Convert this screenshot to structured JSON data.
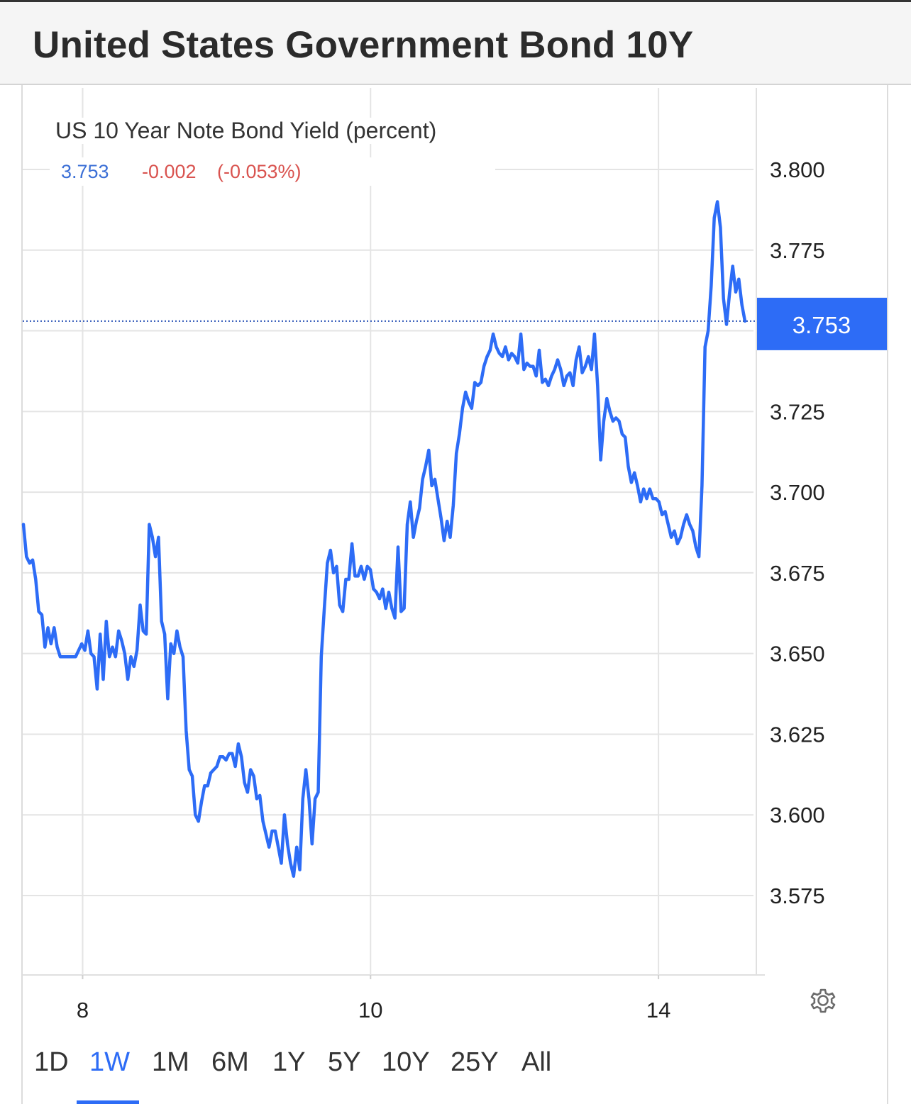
{
  "header": {
    "title": "United States Government Bond 10Y"
  },
  "legend": {
    "title": "US 10 Year Note Bond Yield (percent)",
    "last": "3.753",
    "change": "-0.002",
    "change_pct": "(-0.053%)"
  },
  "ranges": [
    {
      "label": "1D",
      "active": false
    },
    {
      "label": "1W",
      "active": true
    },
    {
      "label": "1M",
      "active": false
    },
    {
      "label": "6M",
      "active": false
    },
    {
      "label": "1Y",
      "active": false
    },
    {
      "label": "5Y",
      "active": false
    },
    {
      "label": "10Y",
      "active": false
    },
    {
      "label": "25Y",
      "active": false
    },
    {
      "label": "All",
      "active": false
    }
  ],
  "icons": {
    "settings": "gear-icon"
  },
  "colors": {
    "line": "#2d6cf6",
    "badge": "#2d6cf6",
    "change_negative": "#d9534f",
    "last_value": "#3b6fd6"
  },
  "chart_data": {
    "type": "line",
    "title": "US 10 Year Note Bond Yield (percent)",
    "ylim": [
      3.55,
      3.81
    ],
    "yticks": [
      "3.800",
      "3.775",
      "3.750",
      "3.725",
      "3.700",
      "3.675",
      "3.650",
      "3.625",
      "3.600",
      "3.575"
    ],
    "yticks_visible": [
      "3.800",
      "3.775",
      "3.725",
      "3.700",
      "3.675",
      "3.650",
      "3.625",
      "3.600",
      "3.575"
    ],
    "xticks": [
      {
        "label": "8",
        "t": 0.082
      },
      {
        "label": "10",
        "t": 0.476
      },
      {
        "label": "14",
        "t": 0.87
      }
    ],
    "current_value": "3.753",
    "grid": true,
    "series": [
      {
        "values": [
          3.69,
          3.68,
          3.678,
          3.679,
          3.673,
          3.663,
          3.662,
          3.652,
          3.658,
          3.653,
          3.658,
          3.652,
          3.649,
          3.649,
          3.649,
          3.649,
          3.649,
          3.649,
          3.651,
          3.653,
          3.651,
          3.657,
          3.65,
          3.649,
          3.639,
          3.656,
          3.642,
          3.66,
          3.649,
          3.652,
          3.649,
          3.657,
          3.654,
          3.65,
          3.642,
          3.649,
          3.646,
          3.651,
          3.665,
          3.657,
          3.656,
          3.69,
          3.686,
          3.68,
          3.686,
          3.66,
          3.656,
          3.636,
          3.653,
          3.65,
          3.657,
          3.652,
          3.649,
          3.626,
          3.614,
          3.612,
          3.6,
          3.598,
          3.604,
          3.609,
          3.609,
          3.613,
          3.614,
          3.615,
          3.618,
          3.618,
          3.617,
          3.619,
          3.619,
          3.615,
          3.622,
          3.618,
          3.61,
          3.607,
          3.614,
          3.612,
          3.605,
          3.606,
          3.598,
          3.594,
          3.59,
          3.595,
          3.595,
          3.59,
          3.585,
          3.6,
          3.591,
          3.585,
          3.581,
          3.59,
          3.583,
          3.605,
          3.614,
          3.605,
          3.591,
          3.605,
          3.607,
          3.649,
          3.664,
          3.678,
          3.682,
          3.675,
          3.677,
          3.665,
          3.663,
          3.673,
          3.673,
          3.684,
          3.674,
          3.674,
          3.677,
          3.673,
          3.677,
          3.676,
          3.67,
          3.669,
          3.667,
          3.67,
          3.664,
          3.669,
          3.664,
          3.661,
          3.683,
          3.663,
          3.664,
          3.69,
          3.697,
          3.686,
          3.691,
          3.695,
          3.704,
          3.708,
          3.713,
          3.702,
          3.704,
          3.698,
          3.692,
          3.685,
          3.691,
          3.686,
          3.696,
          3.712,
          3.718,
          3.726,
          3.731,
          3.728,
          3.726,
          3.734,
          3.733,
          3.734,
          3.739,
          3.742,
          3.744,
          3.749,
          3.745,
          3.743,
          3.742,
          3.745,
          3.741,
          3.743,
          3.742,
          3.74,
          3.749,
          3.738,
          3.74,
          3.739,
          3.739,
          3.736,
          3.744,
          3.734,
          3.735,
          3.733,
          3.736,
          3.738,
          3.741,
          3.738,
          3.733,
          3.736,
          3.737,
          3.733,
          3.741,
          3.745,
          3.737,
          3.739,
          3.742,
          3.738,
          3.749,
          3.733,
          3.71,
          3.722,
          3.729,
          3.725,
          3.722,
          3.723,
          3.722,
          3.718,
          3.717,
          3.708,
          3.703,
          3.706,
          3.702,
          3.697,
          3.701,
          3.698,
          3.701,
          3.698,
          3.698,
          3.697,
          3.693,
          3.694,
          3.69,
          3.686,
          3.688,
          3.684,
          3.686,
          3.69,
          3.693,
          3.69,
          3.688,
          3.683,
          3.68,
          3.702,
          3.745,
          3.75,
          3.764,
          3.785,
          3.79,
          3.782,
          3.76,
          3.752,
          3.762,
          3.77,
          3.762,
          3.766,
          3.758,
          3.753
        ]
      }
    ]
  }
}
